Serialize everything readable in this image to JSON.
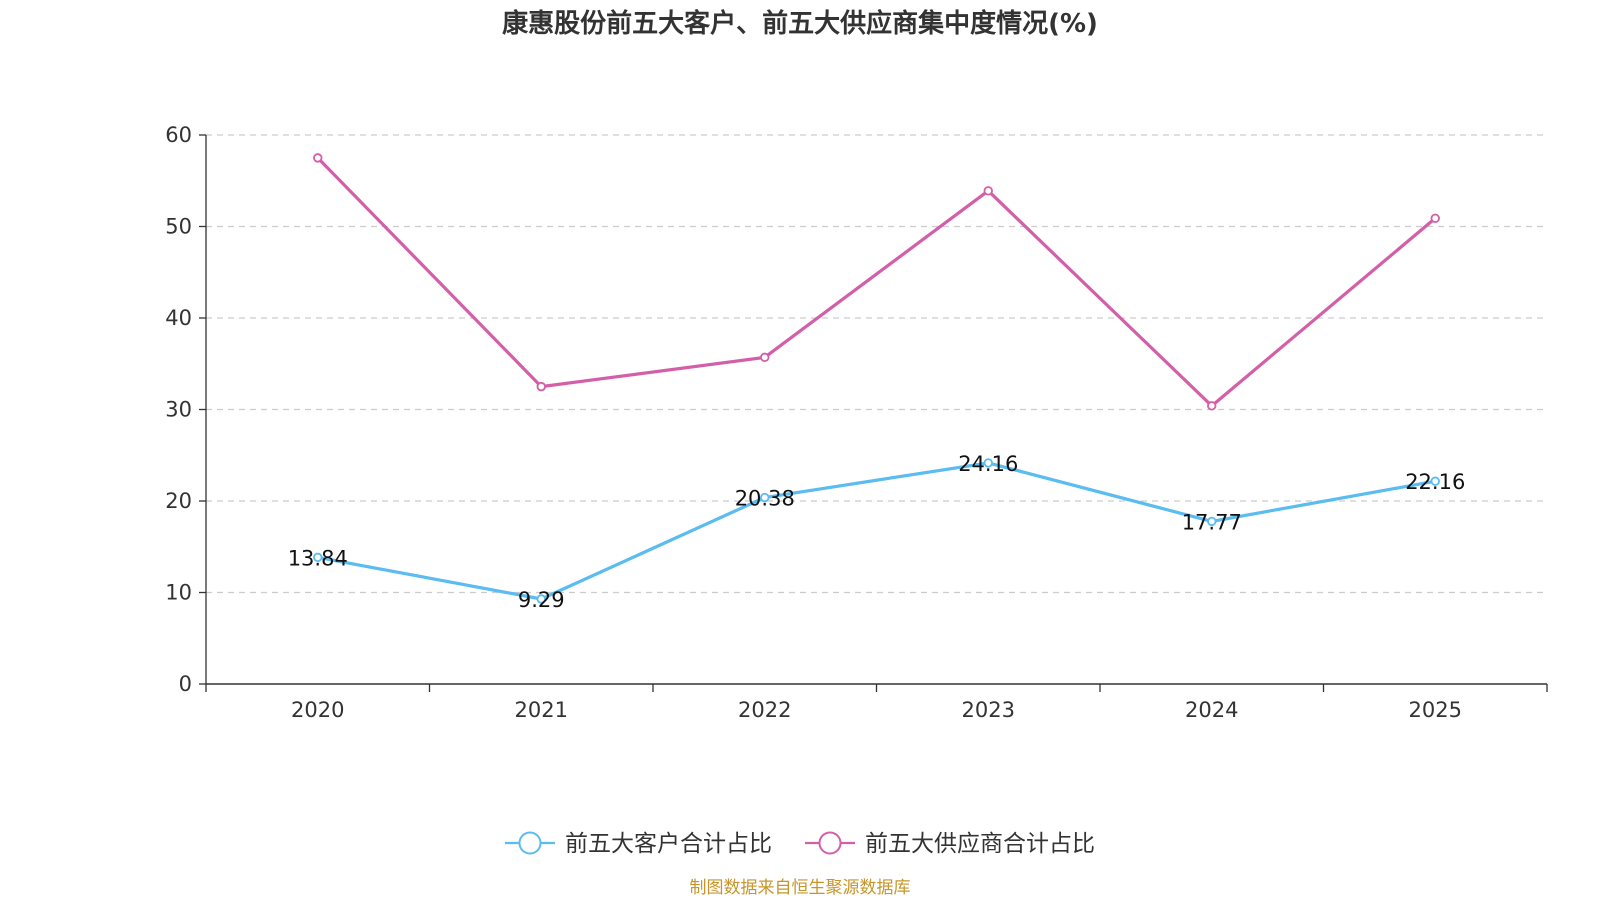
{
  "chart_data": {
    "type": "line",
    "title": "康惠股份前五大客户、前五大供应商集中度情况(%)",
    "categories": [
      "2020",
      "2021",
      "2022",
      "2023",
      "2024",
      "2025"
    ],
    "ylim": [
      0,
      60
    ],
    "yticks": [
      0,
      10,
      20,
      30,
      40,
      50,
      60
    ],
    "grid": true,
    "legend_position": "bottom",
    "series": [
      {
        "name": "前五大客户合计占比",
        "values": [
          13.84,
          9.29,
          20.38,
          24.16,
          17.77,
          22.16
        ],
        "labels": [
          "13.84",
          "9.29",
          "20.38",
          "24.16",
          "17.77",
          "22.16"
        ],
        "color": "#5bbcf0"
      },
      {
        "name": "前五大供应商合计占比",
        "values": [
          57.5,
          32.5,
          35.7,
          53.9,
          30.4,
          50.9
        ],
        "color": "#d35fa9"
      }
    ]
  },
  "source_text": "制图数据来自恒生聚源数据库",
  "colors": {
    "source": "#c8952a",
    "axis": "#333333",
    "grid": "#cccccc"
  }
}
